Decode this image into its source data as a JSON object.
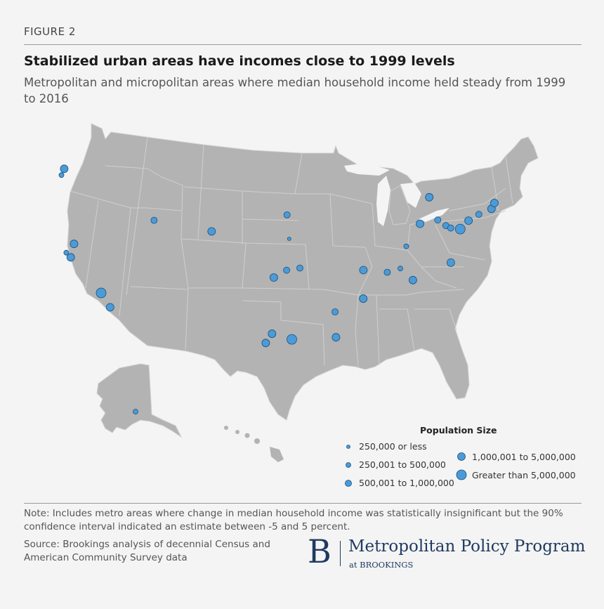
{
  "figure_label": "FIGURE 2",
  "title": "Stabilized urban areas have incomes close to 1999 levels",
  "subtitle": "Metropolitan and micropolitan areas where median household income held steady from 1999 to 2016",
  "colors": {
    "land": "#b3b3b3",
    "border": "#cfcfcf",
    "dot_fill": "#4a9bd8",
    "dot_stroke": "#1d4f7a",
    "background": "#f4f4f4"
  },
  "legend": {
    "title": "Population Size",
    "items": [
      {
        "label": "250,000 or less",
        "size_class": 1
      },
      {
        "label": "250,001 to 500,000",
        "size_class": 2
      },
      {
        "label": "500,001 to 1,000,000",
        "size_class": 3
      },
      {
        "label": "1,000,001 to 5,000,000",
        "size_class": 4
      },
      {
        "label": "Greater than 5,000,000",
        "size_class": 5
      }
    ]
  },
  "note": "Note: Includes metro areas where change in median household income was statistically insignificant but the 90% confidence interval indicated an estimate between -5 and 5 percent.",
  "source": "Source: Brookings analysis of decennial Census and American Community Survey data",
  "logo": {
    "mark": "B",
    "name": "Metropolitan Policy Program",
    "sub": "at BROOKINGS"
  },
  "map_markers": [
    {
      "lon": -122.67,
      "lat": 45.52,
      "size_class": 4
    },
    {
      "lon": -123.0,
      "lat": 44.94,
      "size_class": 2
    },
    {
      "lon": -122.42,
      "lat": 37.77,
      "size_class": 2
    },
    {
      "lon": -121.49,
      "lat": 38.58,
      "size_class": 4
    },
    {
      "lon": -121.89,
      "lat": 37.34,
      "size_class": 4
    },
    {
      "lon": -118.24,
      "lat": 34.05,
      "size_class": 5
    },
    {
      "lon": -117.16,
      "lat": 32.72,
      "size_class": 4
    },
    {
      "lon": -111.89,
      "lat": 40.76,
      "size_class": 3
    },
    {
      "lon": -104.99,
      "lat": 39.74,
      "size_class": 4
    },
    {
      "lon": -95.94,
      "lat": 41.26,
      "size_class": 3
    },
    {
      "lon": -95.68,
      "lat": 39.05,
      "size_class": 1
    },
    {
      "lon": -97.52,
      "lat": 35.47,
      "size_class": 4
    },
    {
      "lon": -95.99,
      "lat": 36.15,
      "size_class": 3
    },
    {
      "lon": -94.4,
      "lat": 36.35,
      "size_class": 3
    },
    {
      "lon": -97.74,
      "lat": 30.27,
      "size_class": 4
    },
    {
      "lon": -98.49,
      "lat": 29.42,
      "size_class": 4
    },
    {
      "lon": -95.37,
      "lat": 29.76,
      "size_class": 5
    },
    {
      "lon": -90.18,
      "lat": 32.3,
      "size_class": 3
    },
    {
      "lon": -90.07,
      "lat": 29.95,
      "size_class": 4
    },
    {
      "lon": -86.8,
      "lat": 33.52,
      "size_class": 4
    },
    {
      "lon": -86.78,
      "lat": 36.16,
      "size_class": 4
    },
    {
      "lon": -83.92,
      "lat": 35.96,
      "size_class": 3
    },
    {
      "lon": -82.35,
      "lat": 36.31,
      "size_class": 2
    },
    {
      "lon": -80.84,
      "lat": 35.23,
      "size_class": 4
    },
    {
      "lon": -76.29,
      "lat": 36.85,
      "size_class": 4
    },
    {
      "lon": -81.63,
      "lat": 38.35,
      "size_class": 2
    },
    {
      "lon": -79.99,
      "lat": 40.44,
      "size_class": 4
    },
    {
      "lon": -78.88,
      "lat": 42.89,
      "size_class": 4
    },
    {
      "lon": -77.86,
      "lat": 40.79,
      "size_class": 3
    },
    {
      "lon": -76.88,
      "lat": 40.27,
      "size_class": 3
    },
    {
      "lon": -76.3,
      "lat": 40.04,
      "size_class": 3
    },
    {
      "lon": -75.16,
      "lat": 39.95,
      "size_class": 5
    },
    {
      "lon": -74.17,
      "lat": 40.73,
      "size_class": 4
    },
    {
      "lon": -72.93,
      "lat": 41.31,
      "size_class": 3
    },
    {
      "lon": -71.41,
      "lat": 41.82,
      "size_class": 4
    },
    {
      "lon": -71.06,
      "lat": 42.36,
      "size_class": 4
    }
  ],
  "alaska_marker": {
    "size_class": 2
  }
}
